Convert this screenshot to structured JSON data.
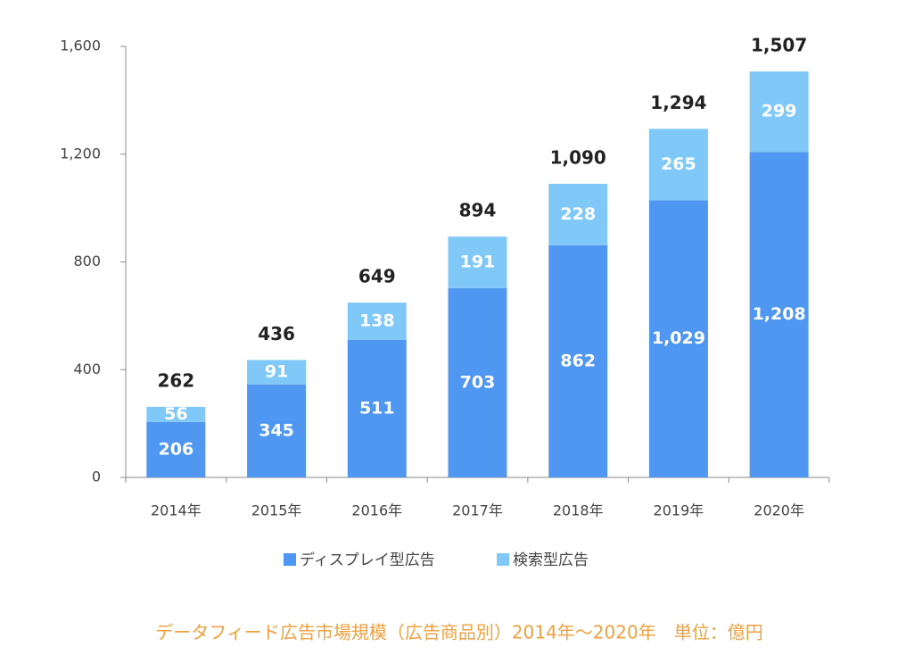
{
  "chart_data": {
    "type": "stacked-bar",
    "categories": [
      "2014年",
      "2015年",
      "2016年",
      "2017年",
      "2018年",
      "2019年",
      "2020年"
    ],
    "series": [
      {
        "name": "ディスプレイ型広告",
        "color": "#4f97f0",
        "values": [
          206,
          345,
          511,
          703,
          862,
          1029,
          1208
        ],
        "value_labels": [
          "206",
          "345",
          "511",
          "703",
          "862",
          "1,029",
          "1,208"
        ]
      },
      {
        "name": "検索型広告",
        "color": "#80c8f8",
        "values": [
          56,
          91,
          138,
          191,
          228,
          265,
          299
        ],
        "value_labels": [
          "56",
          "91",
          "138",
          "191",
          "228",
          "265",
          "299"
        ]
      }
    ],
    "totals": [
      "262",
      "436",
      "649",
      "894",
      "1,090",
      "1,294",
      "1,507"
    ],
    "ylim": [
      0,
      1600
    ],
    "yticks": [
      0,
      400,
      800,
      {
        "value": 1200,
        "label": "1,200"
      },
      {
        "value": 1600,
        "label": "1,600"
      }
    ],
    "legend": "bottom",
    "caption": "データフィード広告市場規模（広告商品別）2014年～2020年　単位：億円"
  }
}
